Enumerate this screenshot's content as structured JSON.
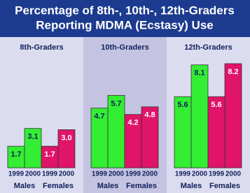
{
  "title": [
    "Percentage of 8th-, 10th-, 12th-Graders",
    "Reporting MDMA (Ecstasy) Use"
  ],
  "chart_data": [
    {
      "type": "bar",
      "title": "8th-Graders",
      "categories": [
        "1999",
        "2000"
      ],
      "background": "#dcdcf0",
      "series": [
        {
          "name": "Males",
          "color": "#33ee33",
          "label_color": "#10205a",
          "values": [
            1.7,
            3.1
          ],
          "value_labels": [
            "1.7",
            "3.1"
          ]
        },
        {
          "name": "Females",
          "color": "#e01468",
          "label_color": "#ffffff",
          "values": [
            1.7,
            3.0
          ],
          "value_labels": [
            "1.7",
            "3.0"
          ]
        }
      ]
    },
    {
      "type": "bar",
      "title": "10th-Graders",
      "categories": [
        "1999",
        "2000"
      ],
      "background": "#c4c4e2",
      "series": [
        {
          "name": "Males",
          "color": "#33ee33",
          "label_color": "#10205a",
          "values": [
            4.7,
            5.7
          ],
          "value_labels": [
            "4.7",
            "5.7"
          ]
        },
        {
          "name": "Females",
          "color": "#e01468",
          "label_color": "#ffffff",
          "values": [
            4.2,
            4.8
          ],
          "value_labels": [
            "4.2",
            "4.8"
          ]
        }
      ]
    },
    {
      "type": "bar",
      "title": "12th-Graders",
      "categories": [
        "1999",
        "2000"
      ],
      "background": "#dcdcf0",
      "series": [
        {
          "name": "Males",
          "color": "#33ee33",
          "label_color": "#10205a",
          "values": [
            5.6,
            8.1
          ],
          "value_labels": [
            "5.6",
            "8.1"
          ]
        },
        {
          "name": "Females",
          "color": "#e01468",
          "label_color": "#ffffff",
          "values": [
            5.6,
            8.2
          ],
          "value_labels": [
            "5.6",
            "8.2"
          ]
        }
      ]
    }
  ]
}
